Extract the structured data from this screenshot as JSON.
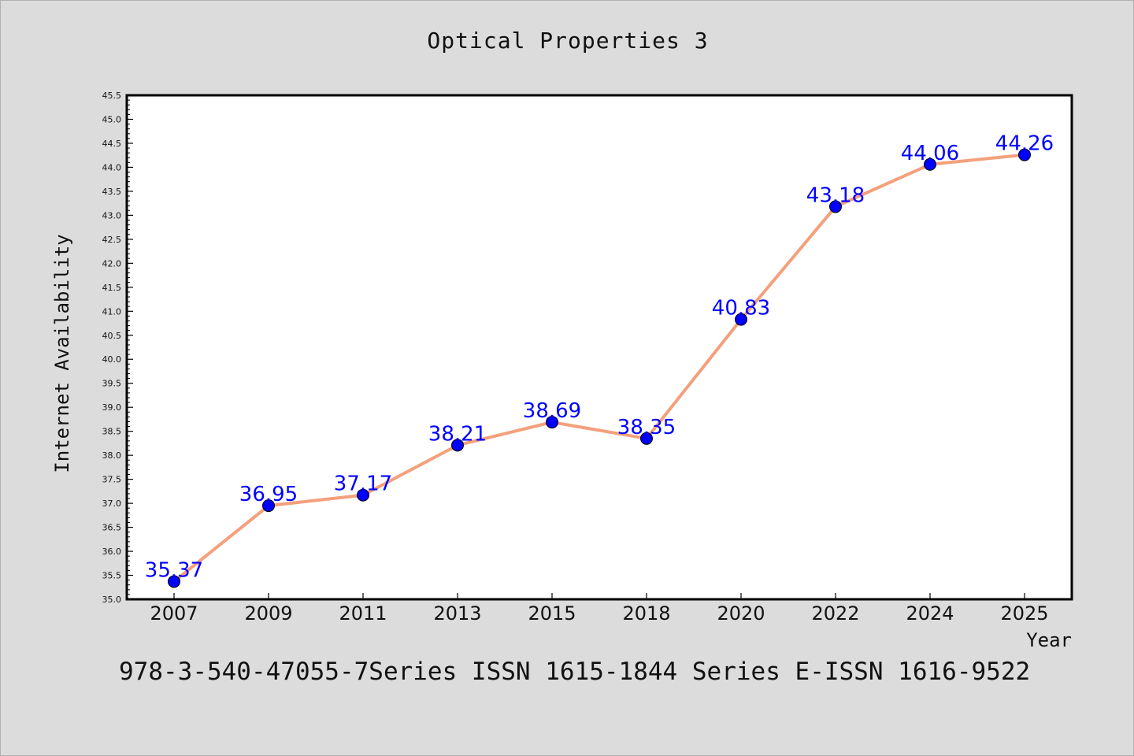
{
  "chart_data": {
    "type": "line",
    "title": "Optical Properties 3",
    "xlabel": "Year",
    "ylabel": "Internet Availability",
    "categories": [
      "2007",
      "2009",
      "2011",
      "2013",
      "2015",
      "2018",
      "2020",
      "2022",
      "2024",
      "2025"
    ],
    "values": [
      35.37,
      36.95,
      37.17,
      38.21,
      38.69,
      38.35,
      40.83,
      43.18,
      44.06,
      44.26
    ],
    "data_labels": [
      "35.37",
      "36.95",
      "37.17",
      "38.21",
      "38.69",
      "38.35",
      "40.83",
      "43.18",
      "44.06",
      "44.26"
    ],
    "ylim": [
      35.0,
      45.5
    ],
    "yticks": [
      "35.0",
      "35.5",
      "36.0",
      "36.5",
      "37.0",
      "37.5",
      "38.0",
      "38.5",
      "39.0",
      "39.5",
      "40.0",
      "40.5",
      "41.0",
      "41.5",
      "42.0",
      "42.5",
      "43.0",
      "43.5",
      "44.0",
      "44.5",
      "45.0",
      "45.5"
    ],
    "grid": false,
    "line_color": "#f4a07c",
    "marker_color": "#0000ff",
    "label_color": "#0000ff",
    "plot_background": "#ffffff",
    "page_background": "#dcdcdc"
  },
  "footer": {
    "text": "978-3-540-47055-7Series ISSN 1615-1844 Series E-ISSN 1616-9522"
  }
}
